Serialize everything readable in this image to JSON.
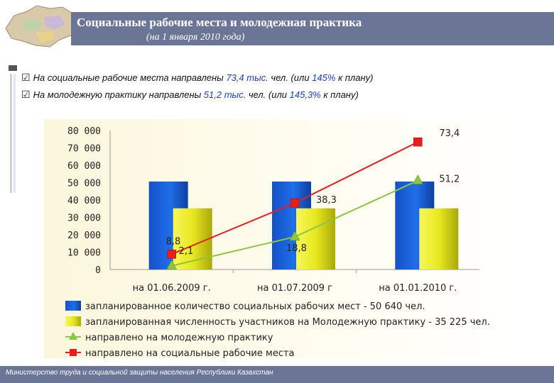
{
  "header": {
    "title": "Социальные рабочие места и молодежная практика",
    "subtitle": "(на 1 января 2010 года)"
  },
  "bullets": [
    {
      "p1": "На социальные рабочие места направлены ",
      "v1": "73,4 тыс",
      "p2": ". чел. (или ",
      "v2": "145%",
      "p3": " к плану)"
    },
    {
      "p1": "На молодежную практику направлены ",
      "v1": "51,2 тыс",
      "p2": ". чел. (или ",
      "v2": "145,3%",
      "p3": " к плану)"
    }
  ],
  "footer": {
    "text": "Министерство труда и социальной защиты населения Республики Казахстан"
  },
  "colors": {
    "blue_bar": "#1f6fe8",
    "yellow_bar": "#e8e820",
    "green_line": "#8cc63f",
    "red_line": "#e81e1e",
    "header": "#6b7596"
  },
  "chart_data": {
    "type": "bar",
    "categories": [
      "на 01.06.2009 г.",
      "на 01.07.2009 г",
      "на 01.01.2010 г."
    ],
    "ylim": [
      0,
      80000
    ],
    "yticks": [
      "0",
      "10 000",
      "20 000",
      "30 000",
      "40 000",
      "50 000",
      "60 000",
      "70 000",
      "80 000"
    ],
    "series": [
      {
        "name": "запланированное количество социальных рабочих мест - 50 640 чел.",
        "kind": "bar",
        "values": [
          50640,
          50640,
          50640
        ]
      },
      {
        "name": "запланированная численность участников на Молодежную практику - 35 225 чел.",
        "kind": "bar",
        "values": [
          35225,
          35225,
          35225
        ]
      },
      {
        "name": "направлено на молодежную практику",
        "kind": "line",
        "values": [
          2100,
          18800,
          51200
        ],
        "labels": [
          "2,1",
          "18,8",
          "51,2"
        ]
      },
      {
        "name": "направлено на социальные рабочие места",
        "kind": "line",
        "values": [
          8800,
          38300,
          73400
        ],
        "labels": [
          "8,8",
          "38,3",
          "73,4"
        ]
      }
    ]
  }
}
